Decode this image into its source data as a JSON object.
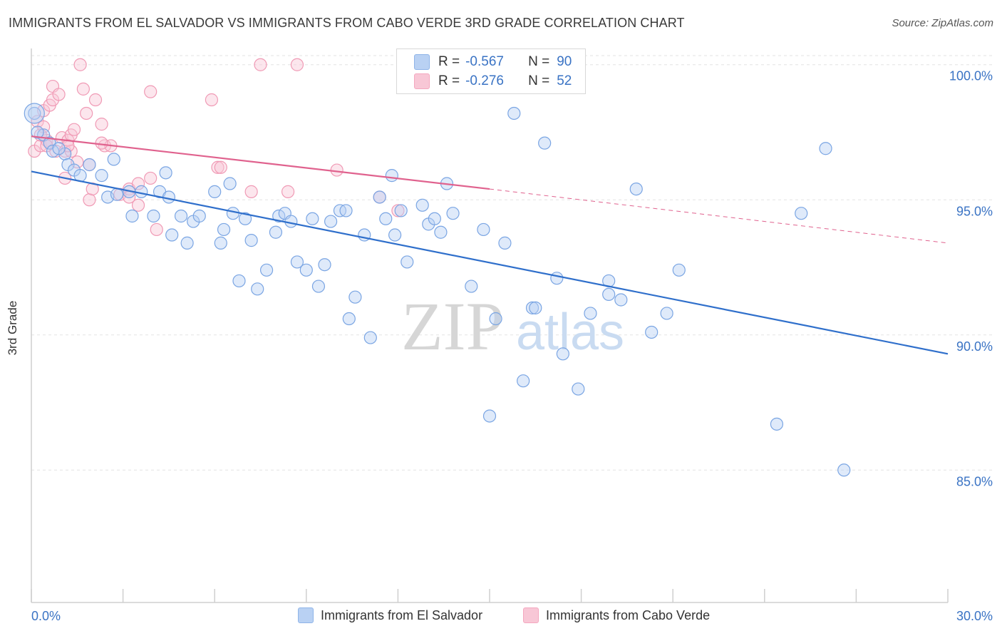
{
  "title": "IMMIGRANTS FROM EL SALVADOR VS IMMIGRANTS FROM CABO VERDE 3RD GRADE CORRELATION CHART",
  "source": "Source: ZipAtlas.com",
  "watermark": {
    "zip": "ZIP",
    "atlas": "atlas"
  },
  "legend_top": {
    "blue": {
      "r_label": "R =",
      "r_value": "-0.567",
      "n_label": "N =",
      "n_value": "90"
    },
    "pink": {
      "r_label": "R =",
      "r_value": "-0.276",
      "n_label": "N =",
      "n_value": "52"
    }
  },
  "colors": {
    "blue": "#8fb4e8",
    "blue_line": "#2f6fcb",
    "pink": "#f4a7bf",
    "pink_line": "#e0628e",
    "tick_text": "#3a73c4"
  },
  "chart_data": {
    "type": "scatter",
    "xlabel": "",
    "ylabel": "3rd Grade",
    "xlim": [
      0,
      30
    ],
    "ylim": [
      80.1,
      100.6
    ],
    "x_tick_labels": {
      "min": "0.0%",
      "max": "30.0%"
    },
    "y_ticks": [
      {
        "value": 100,
        "label": "100.0%"
      },
      {
        "value": 95,
        "label": "95.0%"
      },
      {
        "value": 90,
        "label": "90.0%"
      },
      {
        "value": 85,
        "label": "85.0%"
      }
    ],
    "grid": true,
    "legend_position": "bottom",
    "series": [
      {
        "name": "Immigrants from El Salvador",
        "color": "#8fb4e8",
        "trend": {
          "x0": 0,
          "y0": 96.05,
          "x1": 30,
          "y1": 89.3,
          "dashed_to": 30
        },
        "points": [
          [
            0.1,
            98.2
          ],
          [
            0.4,
            97.4
          ],
          [
            0.6,
            97.1
          ],
          [
            0.7,
            96.8
          ],
          [
            1.1,
            96.7
          ],
          [
            1.2,
            96.3
          ],
          [
            1.4,
            96.1
          ],
          [
            1.6,
            95.9
          ],
          [
            1.9,
            96.3
          ],
          [
            2.3,
            95.9
          ],
          [
            2.7,
            96.5
          ],
          [
            2.5,
            95.1
          ],
          [
            2.8,
            95.2
          ],
          [
            3.2,
            95.3
          ],
          [
            3.3,
            94.4
          ],
          [
            3.6,
            95.3
          ],
          [
            4.0,
            94.4
          ],
          [
            4.2,
            95.3
          ],
          [
            4.4,
            96.0
          ],
          [
            4.5,
            95.1
          ],
          [
            4.6,
            93.7
          ],
          [
            4.9,
            94.4
          ],
          [
            5.1,
            93.4
          ],
          [
            5.3,
            94.2
          ],
          [
            5.5,
            94.4
          ],
          [
            6.0,
            95.3
          ],
          [
            6.2,
            93.4
          ],
          [
            6.3,
            93.9
          ],
          [
            6.5,
            95.6
          ],
          [
            6.6,
            94.5
          ],
          [
            6.8,
            92.0
          ],
          [
            7.0,
            94.3
          ],
          [
            7.2,
            93.5
          ],
          [
            7.4,
            91.7
          ],
          [
            7.7,
            92.4
          ],
          [
            8.0,
            93.8
          ],
          [
            8.1,
            94.4
          ],
          [
            8.3,
            94.5
          ],
          [
            8.5,
            94.2
          ],
          [
            8.7,
            92.7
          ],
          [
            9.0,
            92.4
          ],
          [
            9.2,
            94.3
          ],
          [
            9.4,
            91.8
          ],
          [
            9.6,
            92.6
          ],
          [
            9.8,
            94.2
          ],
          [
            10.1,
            94.6
          ],
          [
            10.3,
            94.6
          ],
          [
            10.4,
            90.6
          ],
          [
            10.6,
            91.4
          ],
          [
            10.9,
            93.7
          ],
          [
            11.1,
            89.9
          ],
          [
            11.4,
            95.1
          ],
          [
            11.6,
            94.3
          ],
          [
            11.8,
            95.9
          ],
          [
            11.9,
            93.7
          ],
          [
            12.1,
            94.6
          ],
          [
            12.3,
            92.7
          ],
          [
            12.8,
            94.8
          ],
          [
            13.0,
            94.1
          ],
          [
            13.2,
            94.3
          ],
          [
            13.4,
            93.8
          ],
          [
            13.6,
            95.6
          ],
          [
            13.8,
            94.5
          ],
          [
            14.4,
            91.8
          ],
          [
            14.8,
            93.9
          ],
          [
            15.0,
            87.0
          ],
          [
            15.2,
            90.6
          ],
          [
            15.5,
            93.4
          ],
          [
            15.8,
            98.2
          ],
          [
            16.1,
            88.3
          ],
          [
            16.4,
            91.0
          ],
          [
            16.5,
            91.0
          ],
          [
            16.8,
            97.1
          ],
          [
            17.2,
            92.1
          ],
          [
            17.4,
            89.3
          ],
          [
            17.9,
            88.0
          ],
          [
            18.3,
            90.8
          ],
          [
            18.9,
            91.5
          ],
          [
            18.9,
            92.0
          ],
          [
            19.3,
            91.3
          ],
          [
            19.8,
            95.4
          ],
          [
            20.3,
            90.1
          ],
          [
            20.8,
            90.8
          ],
          [
            21.2,
            92.4
          ],
          [
            24.4,
            86.7
          ],
          [
            25.2,
            94.5
          ],
          [
            26.0,
            96.9
          ],
          [
            26.6,
            85.0
          ],
          [
            0.2,
            97.5
          ],
          [
            0.9,
            96.9
          ]
        ]
      },
      {
        "name": "Immigrants from Cabo Verde",
        "color": "#f4a7bf",
        "trend": {
          "x0": 0,
          "y0": 97.35,
          "x1": 15.0,
          "y1": 95.4,
          "dashed_to": 30,
          "y_dash_end": 93.4
        },
        "points": [
          [
            0.1,
            96.8
          ],
          [
            0.2,
            97.9
          ],
          [
            0.3,
            97.0
          ],
          [
            0.4,
            97.7
          ],
          [
            0.4,
            98.3
          ],
          [
            0.5,
            97.2
          ],
          [
            0.6,
            97.1
          ],
          [
            0.6,
            98.5
          ],
          [
            0.7,
            98.7
          ],
          [
            0.7,
            99.2
          ],
          [
            0.8,
            96.8
          ],
          [
            0.9,
            98.9
          ],
          [
            1.0,
            97.3
          ],
          [
            1.1,
            96.8
          ],
          [
            1.1,
            95.8
          ],
          [
            1.2,
            97.2
          ],
          [
            1.3,
            97.4
          ],
          [
            1.3,
            96.8
          ],
          [
            1.4,
            97.6
          ],
          [
            1.5,
            96.4
          ],
          [
            1.6,
            100.0
          ],
          [
            1.7,
            99.1
          ],
          [
            1.8,
            98.2
          ],
          [
            1.9,
            96.3
          ],
          [
            1.9,
            95.0
          ],
          [
            2.0,
            95.4
          ],
          [
            2.1,
            98.7
          ],
          [
            2.3,
            97.8
          ],
          [
            2.4,
            97.0
          ],
          [
            2.6,
            97.0
          ],
          [
            2.9,
            95.2
          ],
          [
            3.2,
            95.4
          ],
          [
            3.2,
            95.1
          ],
          [
            3.5,
            94.8
          ],
          [
            3.5,
            95.6
          ],
          [
            3.9,
            95.8
          ],
          [
            3.9,
            99.0
          ],
          [
            4.1,
            93.9
          ],
          [
            5.9,
            98.7
          ],
          [
            6.1,
            96.2
          ],
          [
            6.2,
            96.2
          ],
          [
            7.2,
            95.3
          ],
          [
            7.5,
            100.0
          ],
          [
            8.4,
            95.3
          ],
          [
            8.7,
            100.0
          ],
          [
            10.0,
            96.1
          ],
          [
            11.4,
            95.1
          ],
          [
            12.0,
            94.6
          ],
          [
            2.3,
            97.1
          ],
          [
            0.3,
            97.4
          ],
          [
            1.2,
            97.0
          ],
          [
            0.5,
            97.0
          ]
        ]
      }
    ]
  }
}
